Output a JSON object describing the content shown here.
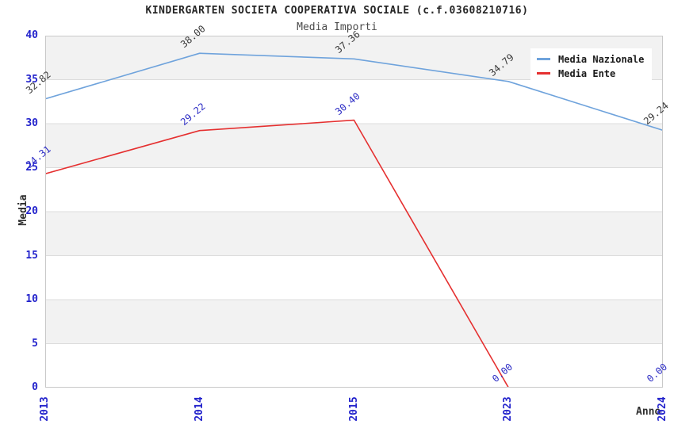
{
  "title": "KINDERGARTEN SOCIETA COOPERATIVA SOCIALE (c.f.03608210716)",
  "subtitle": "Media Importi",
  "axes": {
    "y_label": "Media",
    "x_label": "Anno",
    "y_ticks": [
      "0",
      "5",
      "10",
      "15",
      "20",
      "25",
      "30",
      "35",
      "40"
    ],
    "x_ticks": [
      "2013",
      "2014",
      "2015",
      "2023",
      "2024"
    ]
  },
  "legend": {
    "items": [
      {
        "label": "Media Nazionale",
        "color": "#6fa3dc"
      },
      {
        "label": "Media Ente",
        "color": "#e53030"
      }
    ]
  },
  "colors": {
    "tick_label": "#2323cc",
    "band_fill": "#f2f2f2",
    "grid_line": "#dcdcdc",
    "plot_border": "#c9c9c9",
    "title_text": "#262626",
    "subtitle_text": "#4a4a4a"
  },
  "chart_data": {
    "type": "line",
    "title": "KINDERGARTEN SOCIETA COOPERATIVA SOCIALE (c.f.03608210716)",
    "subtitle": "Media Importi",
    "xlabel": "Anno",
    "ylabel": "Media",
    "categories": [
      "2013",
      "2014",
      "2015",
      "2023",
      "2024"
    ],
    "series": [
      {
        "name": "Media Nazionale",
        "color": "#6fa3dc",
        "values": [
          32.82,
          38.0,
          37.36,
          34.79,
          29.24
        ],
        "labels": [
          "32.82",
          "38.00",
          "37.36",
          "34.79",
          "29.24"
        ],
        "label_color": "#3a3a3a"
      },
      {
        "name": "Media Ente",
        "color": "#e53030",
        "values": [
          24.31,
          29.22,
          30.4,
          0.0,
          0.0
        ],
        "labels": [
          "24.31",
          "29.22",
          "30.40",
          "0.00",
          "0.00"
        ],
        "label_color": "#2b2bc4"
      }
    ],
    "ylim": [
      0,
      40
    ],
    "ytick_step": 5,
    "grid": true,
    "alternating_bands": true,
    "legend_position": "top-right"
  }
}
